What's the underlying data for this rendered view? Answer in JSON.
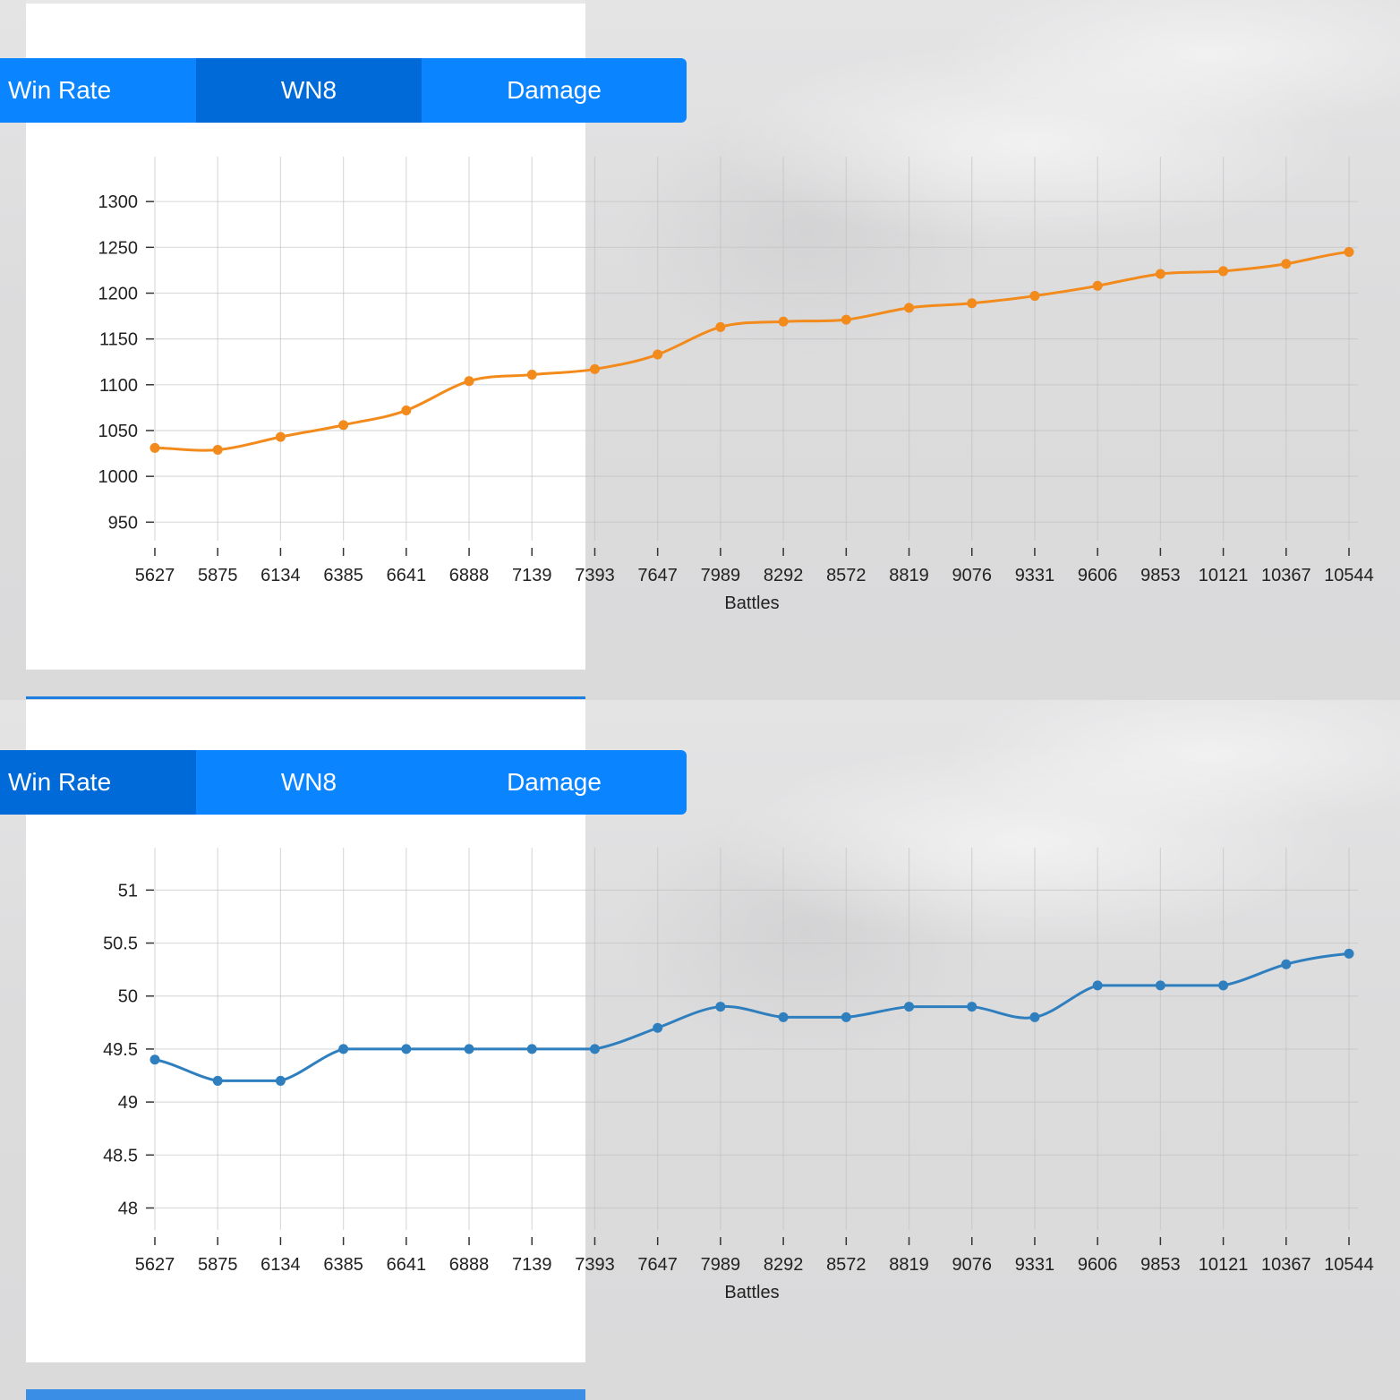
{
  "tabs": [
    "Win Rate",
    "WN8",
    "Damage"
  ],
  "colors": {
    "tab_bg": "#0a84ff",
    "tab_active": "#006ad8",
    "wn8_line": "#f28a1c",
    "winrate_line": "#2f7fbf"
  },
  "chart_data": [
    {
      "type": "line",
      "active_tab": "WN8",
      "xlabel": "Battles",
      "ylabel": "",
      "categories": [
        "5627",
        "5875",
        "6134",
        "6385",
        "6641",
        "6888",
        "7139",
        "7393",
        "7647",
        "7989",
        "8292",
        "8572",
        "8819",
        "9076",
        "9331",
        "9606",
        "9853",
        "10121",
        "10367",
        "10544"
      ],
      "yticks": [
        950,
        1000,
        1050,
        1100,
        1150,
        1200,
        1250,
        1300
      ],
      "ylim": [
        920,
        1350
      ],
      "series": [
        {
          "values": [
            1031,
            1029,
            1043,
            1056,
            1072,
            1104,
            1111,
            1117,
            1133,
            1163,
            1169,
            1171,
            1184,
            1189,
            1197,
            1208,
            1221,
            1224,
            1232,
            1245
          ]
        }
      ],
      "grid": true
    },
    {
      "type": "line",
      "active_tab": "Win Rate",
      "xlabel": "Battles",
      "ylabel": "",
      "categories": [
        "5627",
        "5875",
        "6134",
        "6385",
        "6641",
        "6888",
        "7139",
        "7393",
        "7647",
        "7989",
        "8292",
        "8572",
        "8819",
        "9076",
        "9331",
        "9606",
        "9853",
        "10121",
        "10367",
        "10544"
      ],
      "yticks": [
        48,
        48.5,
        49,
        49.5,
        50,
        50.5,
        51
      ],
      "ylim": [
        47.7,
        51.4
      ],
      "series": [
        {
          "values": [
            49.4,
            49.2,
            49.2,
            49.5,
            49.5,
            49.5,
            49.5,
            49.5,
            49.7,
            49.9,
            49.8,
            49.8,
            49.9,
            49.9,
            49.8,
            50.1,
            50.1,
            50.1,
            50.3,
            50.4
          ]
        }
      ],
      "grid": true
    }
  ]
}
